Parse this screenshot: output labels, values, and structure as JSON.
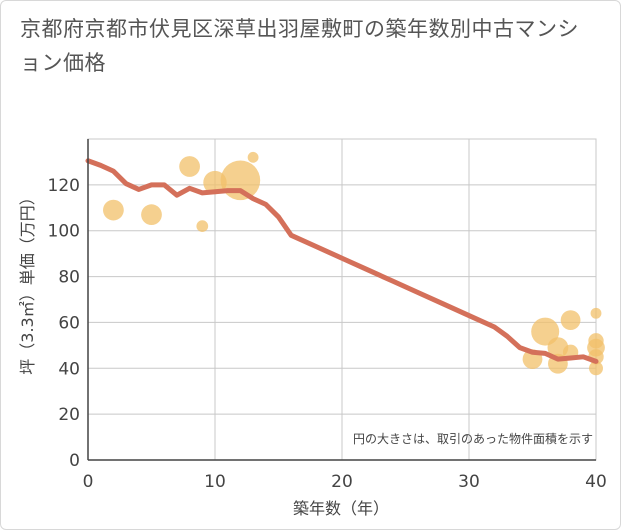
{
  "title": "京都府京都市伏見区深草出羽屋敷町の築年数別中古マンション価格",
  "chart_data": {
    "type": "scatter",
    "title": "京都府京都市伏見区深草出羽屋敷町の築年数別中古マンション価格",
    "xlabel": "築年数（年）",
    "ylabel": "坪（3.3㎡）単価（万円）",
    "xlim": [
      0,
      40
    ],
    "ylim": [
      0,
      140
    ],
    "x_ticks": [
      "0",
      "10",
      "20",
      "30",
      "40"
    ],
    "y_ticks": [
      "0",
      "20",
      "40",
      "60",
      "80",
      "100",
      "120"
    ],
    "grid": true,
    "note": "円の大きさは、取引のあった物件面積を示す",
    "colors": {
      "bubble": "#f2c06a",
      "line": "#d4705a",
      "grid": "#c8c8c8"
    },
    "bubbles": [
      {
        "x": 2,
        "y": 109,
        "size": 2.2
      },
      {
        "x": 5,
        "y": 107,
        "size": 2.2
      },
      {
        "x": 8,
        "y": 128,
        "size": 2.2
      },
      {
        "x": 9,
        "y": 102,
        "size": 0.7
      },
      {
        "x": 10,
        "y": 121,
        "size": 2.8
      },
      {
        "x": 12,
        "y": 122,
        "size": 8
      },
      {
        "x": 13,
        "y": 132,
        "size": 0.6
      },
      {
        "x": 35,
        "y": 44,
        "size": 2
      },
      {
        "x": 36,
        "y": 56,
        "size": 4
      },
      {
        "x": 37,
        "y": 49,
        "size": 2.2
      },
      {
        "x": 37,
        "y": 42,
        "size": 2
      },
      {
        "x": 38,
        "y": 61,
        "size": 2
      },
      {
        "x": 38,
        "y": 47,
        "size": 1.2
      },
      {
        "x": 40,
        "y": 64,
        "size": 0.6
      },
      {
        "x": 40,
        "y": 52,
        "size": 1.2
      },
      {
        "x": 40,
        "y": 49,
        "size": 1.6
      },
      {
        "x": 40,
        "y": 45,
        "size": 1.2
      },
      {
        "x": 40,
        "y": 40,
        "size": 1
      }
    ],
    "series": [
      {
        "x": [
          0,
          1,
          2,
          3,
          4,
          5,
          6,
          7,
          8,
          9,
          10,
          11,
          12,
          13,
          14,
          15,
          16,
          18,
          20,
          22,
          24,
          26,
          28,
          30,
          32,
          33,
          34,
          35,
          36,
          37,
          38,
          39,
          40
        ],
        "values": [
          130.5,
          128.5,
          126,
          120.5,
          118,
          120,
          120,
          115.5,
          118.5,
          116.5,
          117,
          117.5,
          117.5,
          114,
          111.5,
          106,
          98,
          93,
          88,
          83,
          78,
          73,
          68,
          63,
          58,
          54,
          49,
          47,
          46.5,
          44,
          44.5,
          45,
          43
        ]
      }
    ]
  }
}
